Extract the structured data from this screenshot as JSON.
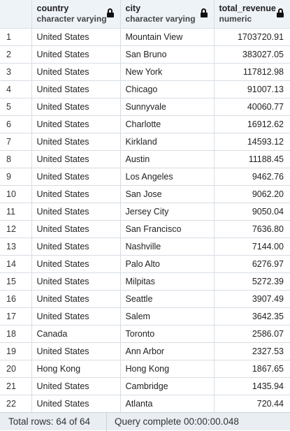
{
  "columns": [
    {
      "name": "",
      "type": ""
    },
    {
      "name": "country",
      "type": "character varying"
    },
    {
      "name": "city",
      "type": "character varying"
    },
    {
      "name": "total_revenue",
      "type": "numeric"
    }
  ],
  "rows": [
    [
      "1",
      "United States",
      "Mountain View",
      "1703720.91"
    ],
    [
      "2",
      "United States",
      "San Bruno",
      "383027.05"
    ],
    [
      "3",
      "United States",
      "New York",
      "117812.98"
    ],
    [
      "4",
      "United States",
      "Chicago",
      "91007.13"
    ],
    [
      "5",
      "United States",
      "Sunnyvale",
      "40060.77"
    ],
    [
      "6",
      "United States",
      "Charlotte",
      "16912.62"
    ],
    [
      "7",
      "United States",
      "Kirkland",
      "14593.12"
    ],
    [
      "8",
      "United States",
      "Austin",
      "11188.45"
    ],
    [
      "9",
      "United States",
      "Los Angeles",
      "9462.76"
    ],
    [
      "10",
      "United States",
      "San Jose",
      "9062.20"
    ],
    [
      "11",
      "United States",
      "Jersey City",
      "9050.04"
    ],
    [
      "12",
      "United States",
      "San Francisco",
      "7636.80"
    ],
    [
      "13",
      "United States",
      "Nashville",
      "7144.00"
    ],
    [
      "14",
      "United States",
      "Palo Alto",
      "6276.97"
    ],
    [
      "15",
      "United States",
      "Milpitas",
      "5272.39"
    ],
    [
      "16",
      "United States",
      "Seattle",
      "3907.49"
    ],
    [
      "17",
      "United States",
      "Salem",
      "3642.35"
    ],
    [
      "18",
      "Canada",
      "Toronto",
      "2586.07"
    ],
    [
      "19",
      "United States",
      "Ann Arbor",
      "2327.53"
    ],
    [
      "20",
      "Hong Kong",
      "Hong Kong",
      "1867.65"
    ],
    [
      "21",
      "United States",
      "Cambridge",
      "1435.94"
    ],
    [
      "22",
      "United States",
      "Atlanta",
      "720.44"
    ]
  ],
  "status": {
    "total_rows": "Total rows: 64 of 64",
    "query": "Query complete 00:00:00.048"
  },
  "icons": {
    "column_lock": "lock-icon"
  }
}
